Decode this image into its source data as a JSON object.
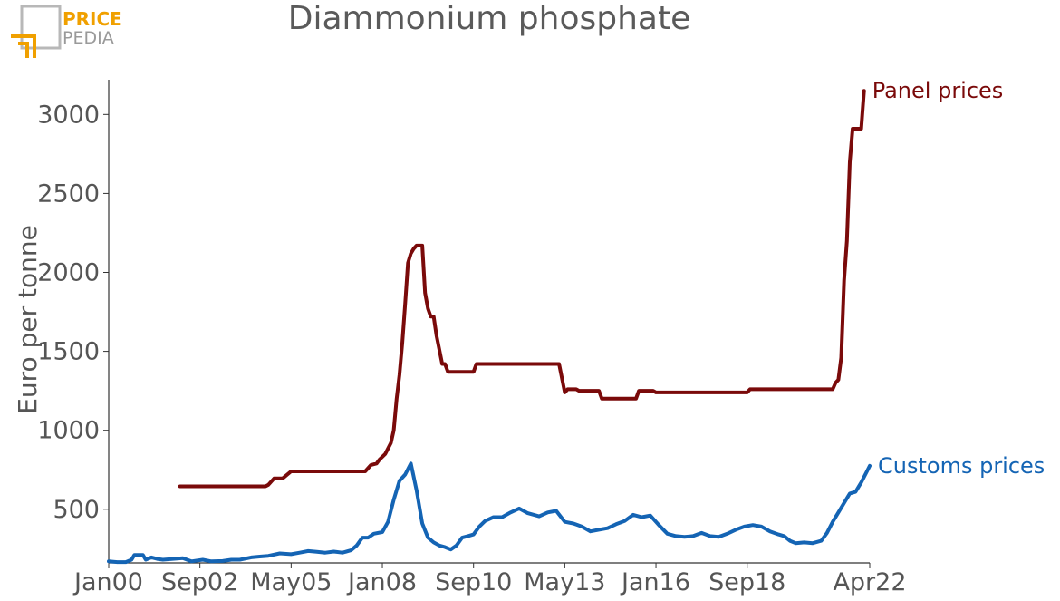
{
  "logo": {
    "line1": "PRICE",
    "line2": "PEDIA",
    "accent": "#f0a000",
    "muted": "#9a9a9a"
  },
  "chart_data": {
    "type": "line",
    "title": "Diammonium phosphate",
    "ylabel": "Euro per tonne",
    "xlabel": "",
    "ylim": [
      160,
      3220
    ],
    "yticks": [
      500,
      1000,
      1500,
      2000,
      2500,
      3000
    ],
    "xlim": [
      "2000-01",
      "2022-04"
    ],
    "xticks": [
      "Jan00",
      "Sep02",
      "May05",
      "Jan08",
      "Sep10",
      "May13",
      "Jan16",
      "Sep18",
      "Apr22"
    ],
    "xtick_dates": [
      "2000-01",
      "2002-09",
      "2005-05",
      "2008-01",
      "2010-09",
      "2013-05",
      "2016-01",
      "2018-09",
      "2022-04"
    ],
    "series": [
      {
        "name": "Panel prices",
        "color": "#7a0a0a",
        "points": [
          [
            "2002-02",
            645
          ],
          [
            "2004-08",
            645
          ],
          [
            "2004-09",
            655
          ],
          [
            "2004-11",
            695
          ],
          [
            "2005-02",
            695
          ],
          [
            "2005-05",
            740
          ],
          [
            "2007-07",
            740
          ],
          [
            "2007-09",
            780
          ],
          [
            "2007-11",
            790
          ],
          [
            "2007-12",
            815
          ],
          [
            "2008-02",
            850
          ],
          [
            "2008-04",
            920
          ],
          [
            "2008-05",
            1000
          ],
          [
            "2008-06",
            1200
          ],
          [
            "2008-07",
            1350
          ],
          [
            "2008-08",
            1550
          ],
          [
            "2008-09",
            1800
          ],
          [
            "2008-10",
            2060
          ],
          [
            "2008-11",
            2120
          ],
          [
            "2008-12",
            2150
          ],
          [
            "2009-01",
            2170
          ],
          [
            "2009-03",
            2170
          ],
          [
            "2009-04",
            1870
          ],
          [
            "2009-05",
            1770
          ],
          [
            "2009-06",
            1720
          ],
          [
            "2009-07",
            1720
          ],
          [
            "2009-08",
            1600
          ],
          [
            "2009-10",
            1420
          ],
          [
            "2009-11",
            1420
          ],
          [
            "2009-12",
            1370
          ],
          [
            "2010-09",
            1370
          ],
          [
            "2010-10",
            1420
          ],
          [
            "2013-03",
            1420
          ],
          [
            "2013-05",
            1240
          ],
          [
            "2013-06",
            1260
          ],
          [
            "2013-09",
            1260
          ],
          [
            "2013-10",
            1250
          ],
          [
            "2014-05",
            1250
          ],
          [
            "2014-06",
            1200
          ],
          [
            "2015-06",
            1200
          ],
          [
            "2015-07",
            1250
          ],
          [
            "2015-12",
            1250
          ],
          [
            "2016-01",
            1240
          ],
          [
            "2018-09",
            1240
          ],
          [
            "2018-10",
            1260
          ],
          [
            "2021-01",
            1260
          ],
          [
            "2021-03",
            1260
          ],
          [
            "2021-04",
            1300
          ],
          [
            "2021-05",
            1320
          ],
          [
            "2021-06",
            1460
          ],
          [
            "2021-07",
            1950
          ],
          [
            "2021-08",
            2200
          ],
          [
            "2021-09",
            2700
          ],
          [
            "2021-10",
            2910
          ],
          [
            "2022-01",
            2910
          ],
          [
            "2022-02",
            3150
          ]
        ]
      },
      {
        "name": "Customs prices",
        "color": "#1464b4",
        "points": [
          [
            "2000-01",
            170
          ],
          [
            "2000-04",
            165
          ],
          [
            "2000-07",
            165
          ],
          [
            "2000-09",
            180
          ],
          [
            "2000-10",
            210
          ],
          [
            "2001-01",
            210
          ],
          [
            "2001-02",
            180
          ],
          [
            "2001-04",
            195
          ],
          [
            "2001-06",
            185
          ],
          [
            "2001-08",
            180
          ],
          [
            "2002-03",
            190
          ],
          [
            "2002-06",
            170
          ],
          [
            "2002-10",
            180
          ],
          [
            "2003-01",
            170
          ],
          [
            "2003-05",
            172
          ],
          [
            "2003-08",
            180
          ],
          [
            "2003-11",
            180
          ],
          [
            "2004-03",
            195
          ],
          [
            "2004-06",
            200
          ],
          [
            "2004-09",
            205
          ],
          [
            "2005-01",
            220
          ],
          [
            "2005-05",
            215
          ],
          [
            "2005-08",
            225
          ],
          [
            "2005-11",
            235
          ],
          [
            "2006-02",
            230
          ],
          [
            "2006-05",
            225
          ],
          [
            "2006-08",
            232
          ],
          [
            "2006-11",
            225
          ],
          [
            "2007-02",
            240
          ],
          [
            "2007-04",
            270
          ],
          [
            "2007-06",
            320
          ],
          [
            "2007-08",
            320
          ],
          [
            "2007-10",
            345
          ],
          [
            "2008-01",
            355
          ],
          [
            "2008-03",
            420
          ],
          [
            "2008-05",
            560
          ],
          [
            "2008-07",
            680
          ],
          [
            "2008-09",
            720
          ],
          [
            "2008-11",
            790
          ],
          [
            "2009-01",
            620
          ],
          [
            "2009-03",
            410
          ],
          [
            "2009-05",
            320
          ],
          [
            "2009-07",
            290
          ],
          [
            "2009-09",
            270
          ],
          [
            "2009-11",
            260
          ],
          [
            "2010-01",
            245
          ],
          [
            "2010-03",
            270
          ],
          [
            "2010-05",
            320
          ],
          [
            "2010-07",
            330
          ],
          [
            "2010-09",
            340
          ],
          [
            "2010-11",
            390
          ],
          [
            "2011-01",
            425
          ],
          [
            "2011-04",
            450
          ],
          [
            "2011-07",
            450
          ],
          [
            "2011-10",
            480
          ],
          [
            "2012-01",
            505
          ],
          [
            "2012-04",
            475
          ],
          [
            "2012-08",
            455
          ],
          [
            "2012-11",
            480
          ],
          [
            "2013-02",
            490
          ],
          [
            "2013-05",
            420
          ],
          [
            "2013-08",
            410
          ],
          [
            "2013-11",
            390
          ],
          [
            "2014-02",
            360
          ],
          [
            "2014-05",
            370
          ],
          [
            "2014-08",
            380
          ],
          [
            "2014-11",
            405
          ],
          [
            "2015-02",
            425
          ],
          [
            "2015-05",
            465
          ],
          [
            "2015-08",
            450
          ],
          [
            "2015-11",
            460
          ],
          [
            "2016-02",
            400
          ],
          [
            "2016-05",
            345
          ],
          [
            "2016-08",
            330
          ],
          [
            "2016-11",
            325
          ],
          [
            "2017-02",
            330
          ],
          [
            "2017-05",
            350
          ],
          [
            "2017-08",
            330
          ],
          [
            "2017-11",
            325
          ],
          [
            "2018-02",
            345
          ],
          [
            "2018-05",
            370
          ],
          [
            "2018-08",
            390
          ],
          [
            "2018-11",
            400
          ],
          [
            "2019-02",
            390
          ],
          [
            "2019-05",
            360
          ],
          [
            "2019-08",
            340
          ],
          [
            "2019-10",
            330
          ],
          [
            "2019-12",
            300
          ],
          [
            "2020-02",
            285
          ],
          [
            "2020-05",
            290
          ],
          [
            "2020-08",
            285
          ],
          [
            "2020-11",
            300
          ],
          [
            "2021-01",
            350
          ],
          [
            "2021-03",
            420
          ],
          [
            "2021-05",
            480
          ],
          [
            "2021-07",
            540
          ],
          [
            "2021-09",
            600
          ],
          [
            "2021-11",
            610
          ],
          [
            "2022-01",
            670
          ],
          [
            "2022-03",
            740
          ],
          [
            "2022-04",
            775
          ]
        ]
      }
    ]
  }
}
